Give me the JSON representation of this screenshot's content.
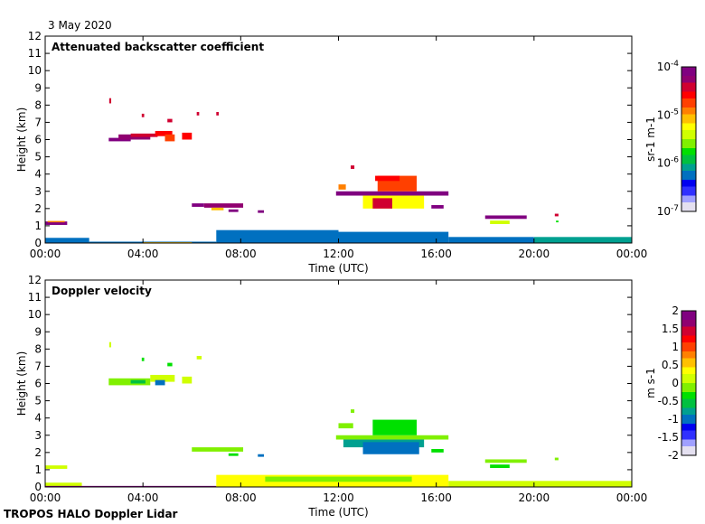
{
  "date_label": "3 May 2020",
  "footer": "TROPOS HALO Doppler Lidar",
  "colormap": [
    "#e4e0f0",
    "#a0a0ff",
    "#3030ff",
    "#0000f0",
    "#0070c0",
    "#00a090",
    "#00c040",
    "#00e000",
    "#80f000",
    "#d0ff00",
    "#ffff00",
    "#ffc000",
    "#ff8000",
    "#ff4000",
    "#ff0000",
    "#d00030",
    "#900070",
    "#800080"
  ],
  "chart_data": [
    {
      "type": "heatmap",
      "title": "Attenuated backscatter coefficient",
      "xlabel": "Time (UTC)",
      "ylabel": "Height (km)",
      "xlim": [
        0,
        24
      ],
      "ylim": [
        0,
        12
      ],
      "xticks": [
        0,
        4,
        8,
        12,
        16,
        20,
        24
      ],
      "xtick_labels": [
        "00:00",
        "04:00",
        "08:00",
        "12:00",
        "16:00",
        "20:00",
        "00:00"
      ],
      "yticks": [
        0,
        1,
        2,
        3,
        4,
        5,
        6,
        7,
        8,
        9,
        10,
        11,
        12
      ],
      "ytick_labels": [
        "0",
        "1",
        "2",
        "3",
        "4",
        "5",
        "6",
        "7",
        "8",
        "9",
        "10",
        "11",
        "12"
      ],
      "colorbar": {
        "label": "sr-1 m-1",
        "label_parts": [
          "sr",
          "-1",
          " m",
          "-1"
        ],
        "scale": "log",
        "range": [
          -7,
          -4
        ],
        "tick_values": [
          -4,
          -5,
          -6,
          -7
        ],
        "tick_labels": [
          {
            "base": "10",
            "exp": "-4"
          },
          {
            "base": "10",
            "exp": "-5"
          },
          {
            "base": "10",
            "exp": "-6"
          },
          {
            "base": "10",
            "exp": "-7"
          }
        ]
      },
      "features": [
        {
          "t": [
            0.0,
            0.9
          ],
          "h": [
            1.05,
            1.25
          ],
          "v": -4.15
        },
        {
          "t": [
            0.1,
            0.8
          ],
          "h": [
            1.2,
            1.28
          ],
          "v": -5.0
        },
        {
          "t": [
            2.62,
            2.7
          ],
          "h": [
            8.1,
            8.4
          ],
          "v": -4.4
        },
        {
          "t": [
            2.6,
            3.5
          ],
          "h": [
            5.9,
            6.1
          ],
          "v": -4.1
        },
        {
          "t": [
            3.0,
            4.3
          ],
          "h": [
            6.0,
            6.3
          ],
          "v": -4.2
        },
        {
          "t": [
            3.5,
            4.6
          ],
          "h": [
            6.15,
            6.35
          ],
          "v": -4.5
        },
        {
          "t": [
            4.5,
            5.2
          ],
          "h": [
            6.2,
            6.5
          ],
          "v": -4.6
        },
        {
          "t": [
            4.9,
            5.3
          ],
          "h": [
            5.9,
            6.3
          ],
          "v": -4.7
        },
        {
          "t": [
            3.95,
            4.05
          ],
          "h": [
            7.3,
            7.5
          ],
          "v": -4.4
        },
        {
          "t": [
            5.0,
            5.2
          ],
          "h": [
            7.0,
            7.2
          ],
          "v": -4.5
        },
        {
          "t": [
            5.6,
            6.0
          ],
          "h": [
            6.0,
            6.4
          ],
          "v": -4.6
        },
        {
          "t": [
            6.2,
            6.3
          ],
          "h": [
            7.4,
            7.6
          ],
          "v": -4.4
        },
        {
          "t": [
            7.0,
            7.1
          ],
          "h": [
            7.4,
            7.6
          ],
          "v": -4.4
        },
        {
          "t": [
            6.0,
            6.5
          ],
          "h": [
            2.1,
            2.3
          ],
          "v": -4.1
        },
        {
          "t": [
            6.5,
            8.1
          ],
          "h": [
            2.05,
            2.3
          ],
          "v": -4.2
        },
        {
          "t": [
            6.8,
            7.3
          ],
          "h": [
            1.9,
            2.05
          ],
          "v": -5.1
        },
        {
          "t": [
            7.5,
            7.9
          ],
          "h": [
            1.8,
            1.95
          ],
          "v": -4.1
        },
        {
          "t": [
            8.7,
            8.95
          ],
          "h": [
            1.75,
            1.9
          ],
          "v": -4.1
        },
        {
          "t": [
            0.0,
            1.8
          ],
          "h": [
            0.0,
            0.3
          ],
          "v": -6.3
        },
        {
          "t": [
            1.8,
            7.0
          ],
          "h": [
            0.0,
            0.08
          ],
          "v": -6.2
        },
        {
          "t": [
            4.0,
            6.0
          ],
          "h": [
            0.0,
            0.05
          ],
          "v": -5.1
        },
        {
          "t": [
            7.0,
            12.0
          ],
          "h": [
            0.0,
            0.75
          ],
          "v": -6.2
        },
        {
          "t": [
            12.0,
            16.5
          ],
          "h": [
            0.0,
            0.65
          ],
          "v": -6.3
        },
        {
          "t": [
            16.5,
            20.0
          ],
          "h": [
            0.0,
            0.35
          ],
          "v": -6.2
        },
        {
          "t": [
            20.0,
            24.0
          ],
          "h": [
            0.0,
            0.35
          ],
          "v": -6.1
        },
        {
          "t": [
            11.9,
            16.5
          ],
          "h": [
            2.75,
            3.0
          ],
          "v": -4.1
        },
        {
          "t": [
            13.0,
            15.5
          ],
          "h": [
            2.0,
            2.75
          ],
          "v": -5.2
        },
        {
          "t": [
            13.4,
            14.2
          ],
          "h": [
            2.0,
            2.6
          ],
          "v": -4.5
        },
        {
          "t": [
            13.6,
            15.2
          ],
          "h": [
            3.0,
            3.9
          ],
          "v": -4.8
        },
        {
          "t": [
            13.5,
            14.5
          ],
          "h": [
            3.6,
            3.9
          ],
          "v": -4.6
        },
        {
          "t": [
            12.0,
            12.3
          ],
          "h": [
            3.1,
            3.4
          ],
          "v": -5.0
        },
        {
          "t": [
            12.5,
            12.65
          ],
          "h": [
            4.3,
            4.5
          ],
          "v": -4.4
        },
        {
          "t": [
            15.8,
            16.3
          ],
          "h": [
            2.0,
            2.2
          ],
          "v": -4.1
        },
        {
          "t": [
            18.0,
            19.7
          ],
          "h": [
            1.4,
            1.6
          ],
          "v": -4.1
        },
        {
          "t": [
            18.2,
            19.0
          ],
          "h": [
            1.1,
            1.3
          ],
          "v": -5.5
        },
        {
          "t": [
            20.85,
            21.0
          ],
          "h": [
            1.55,
            1.7
          ],
          "v": -4.4
        },
        {
          "t": [
            20.9,
            21.0
          ],
          "h": [
            1.2,
            1.3
          ],
          "v": -5.8
        }
      ]
    },
    {
      "type": "heatmap",
      "title": "Doppler velocity",
      "xlabel": "Time (UTC)",
      "ylabel": "Height (km)",
      "xlim": [
        0,
        24
      ],
      "ylim": [
        0,
        12
      ],
      "xticks": [
        0,
        4,
        8,
        12,
        16,
        20,
        24
      ],
      "xtick_labels": [
        "00:00",
        "04:00",
        "08:00",
        "12:00",
        "16:00",
        "20:00",
        "00:00"
      ],
      "yticks": [
        0,
        1,
        2,
        3,
        4,
        5,
        6,
        7,
        8,
        9,
        10,
        11,
        12
      ],
      "ytick_labels": [
        "0",
        "1",
        "2",
        "3",
        "4",
        "5",
        "6",
        "7",
        "8",
        "9",
        "10",
        "11",
        "12"
      ],
      "colorbar": {
        "label": "m s-1",
        "label_parts": [
          "m s",
          "-1",
          "",
          ""
        ],
        "scale": "linear",
        "range": [
          -2,
          2
        ],
        "tick_values": [
          2,
          1.5,
          1,
          0.5,
          0,
          -0.5,
          -1,
          -1.5,
          -2
        ],
        "tick_labels": [
          {
            "base": "2",
            "exp": ""
          },
          {
            "base": "1.5",
            "exp": ""
          },
          {
            "base": "1",
            "exp": ""
          },
          {
            "base": "0.5",
            "exp": ""
          },
          {
            "base": "0",
            "exp": ""
          },
          {
            "base": "-0.5",
            "exp": ""
          },
          {
            "base": "-1",
            "exp": ""
          },
          {
            "base": "-1.5",
            "exp": ""
          },
          {
            "base": "-2",
            "exp": ""
          }
        ]
      },
      "features": [
        {
          "t": [
            0.0,
            0.9
          ],
          "h": [
            1.05,
            1.25
          ],
          "v": 0.1
        },
        {
          "t": [
            2.62,
            2.7
          ],
          "h": [
            8.1,
            8.4
          ],
          "v": 0.2
        },
        {
          "t": [
            2.6,
            4.3
          ],
          "h": [
            5.9,
            6.3
          ],
          "v": -0.1
        },
        {
          "t": [
            3.5,
            4.1
          ],
          "h": [
            6.0,
            6.2
          ],
          "v": -0.6
        },
        {
          "t": [
            4.3,
            5.3
          ],
          "h": [
            6.1,
            6.5
          ],
          "v": 0.0
        },
        {
          "t": [
            4.5,
            4.9
          ],
          "h": [
            5.9,
            6.2
          ],
          "v": -0.9
        },
        {
          "t": [
            5.0,
            5.2
          ],
          "h": [
            7.0,
            7.2
          ],
          "v": -0.3
        },
        {
          "t": [
            5.6,
            6.0
          ],
          "h": [
            6.0,
            6.4
          ],
          "v": 0.1
        },
        {
          "t": [
            3.95,
            4.05
          ],
          "h": [
            7.3,
            7.5
          ],
          "v": -0.3
        },
        {
          "t": [
            6.2,
            6.4
          ],
          "h": [
            7.4,
            7.6
          ],
          "v": 0.0
        },
        {
          "t": [
            6.0,
            8.1
          ],
          "h": [
            2.05,
            2.3
          ],
          "v": -0.2
        },
        {
          "t": [
            7.5,
            7.9
          ],
          "h": [
            1.8,
            1.95
          ],
          "v": -0.4
        },
        {
          "t": [
            8.7,
            8.95
          ],
          "h": [
            1.75,
            1.9
          ],
          "v": -0.9
        },
        {
          "t": [
            0.0,
            1.5
          ],
          "h": [
            0.0,
            0.25
          ],
          "v": 0.1
        },
        {
          "t": [
            0.0,
            7.0
          ],
          "h": [
            0.0,
            0.06
          ],
          "v": 1.8
        },
        {
          "t": [
            7.0,
            16.5
          ],
          "h": [
            0.0,
            0.7
          ],
          "v": 0.3
        },
        {
          "t": [
            9.0,
            15.0
          ],
          "h": [
            0.3,
            0.6
          ],
          "v": -0.1
        },
        {
          "t": [
            16.5,
            24.0
          ],
          "h": [
            0.0,
            0.35
          ],
          "v": 0.2
        },
        {
          "t": [
            11.9,
            16.5
          ],
          "h": [
            2.75,
            3.0
          ],
          "v": -0.2
        },
        {
          "t": [
            12.2,
            15.5
          ],
          "h": [
            2.3,
            2.75
          ],
          "v": -0.8
        },
        {
          "t": [
            13.0,
            15.3
          ],
          "h": [
            1.9,
            2.6
          ],
          "v": -1.0
        },
        {
          "t": [
            13.4,
            15.2
          ],
          "h": [
            3.0,
            3.9
          ],
          "v": -0.3
        },
        {
          "t": [
            12.0,
            12.6
          ],
          "h": [
            3.4,
            3.7
          ],
          "v": -0.2
        },
        {
          "t": [
            12.5,
            12.65
          ],
          "h": [
            4.3,
            4.5
          ],
          "v": -0.2
        },
        {
          "t": [
            15.8,
            16.3
          ],
          "h": [
            2.0,
            2.2
          ],
          "v": -0.3
        },
        {
          "t": [
            18.0,
            19.7
          ],
          "h": [
            1.4,
            1.6
          ],
          "v": -0.1
        },
        {
          "t": [
            18.2,
            19.0
          ],
          "h": [
            1.1,
            1.3
          ],
          "v": -0.3
        },
        {
          "t": [
            20.85,
            21.0
          ],
          "h": [
            1.55,
            1.7
          ],
          "v": -0.2
        }
      ]
    }
  ]
}
